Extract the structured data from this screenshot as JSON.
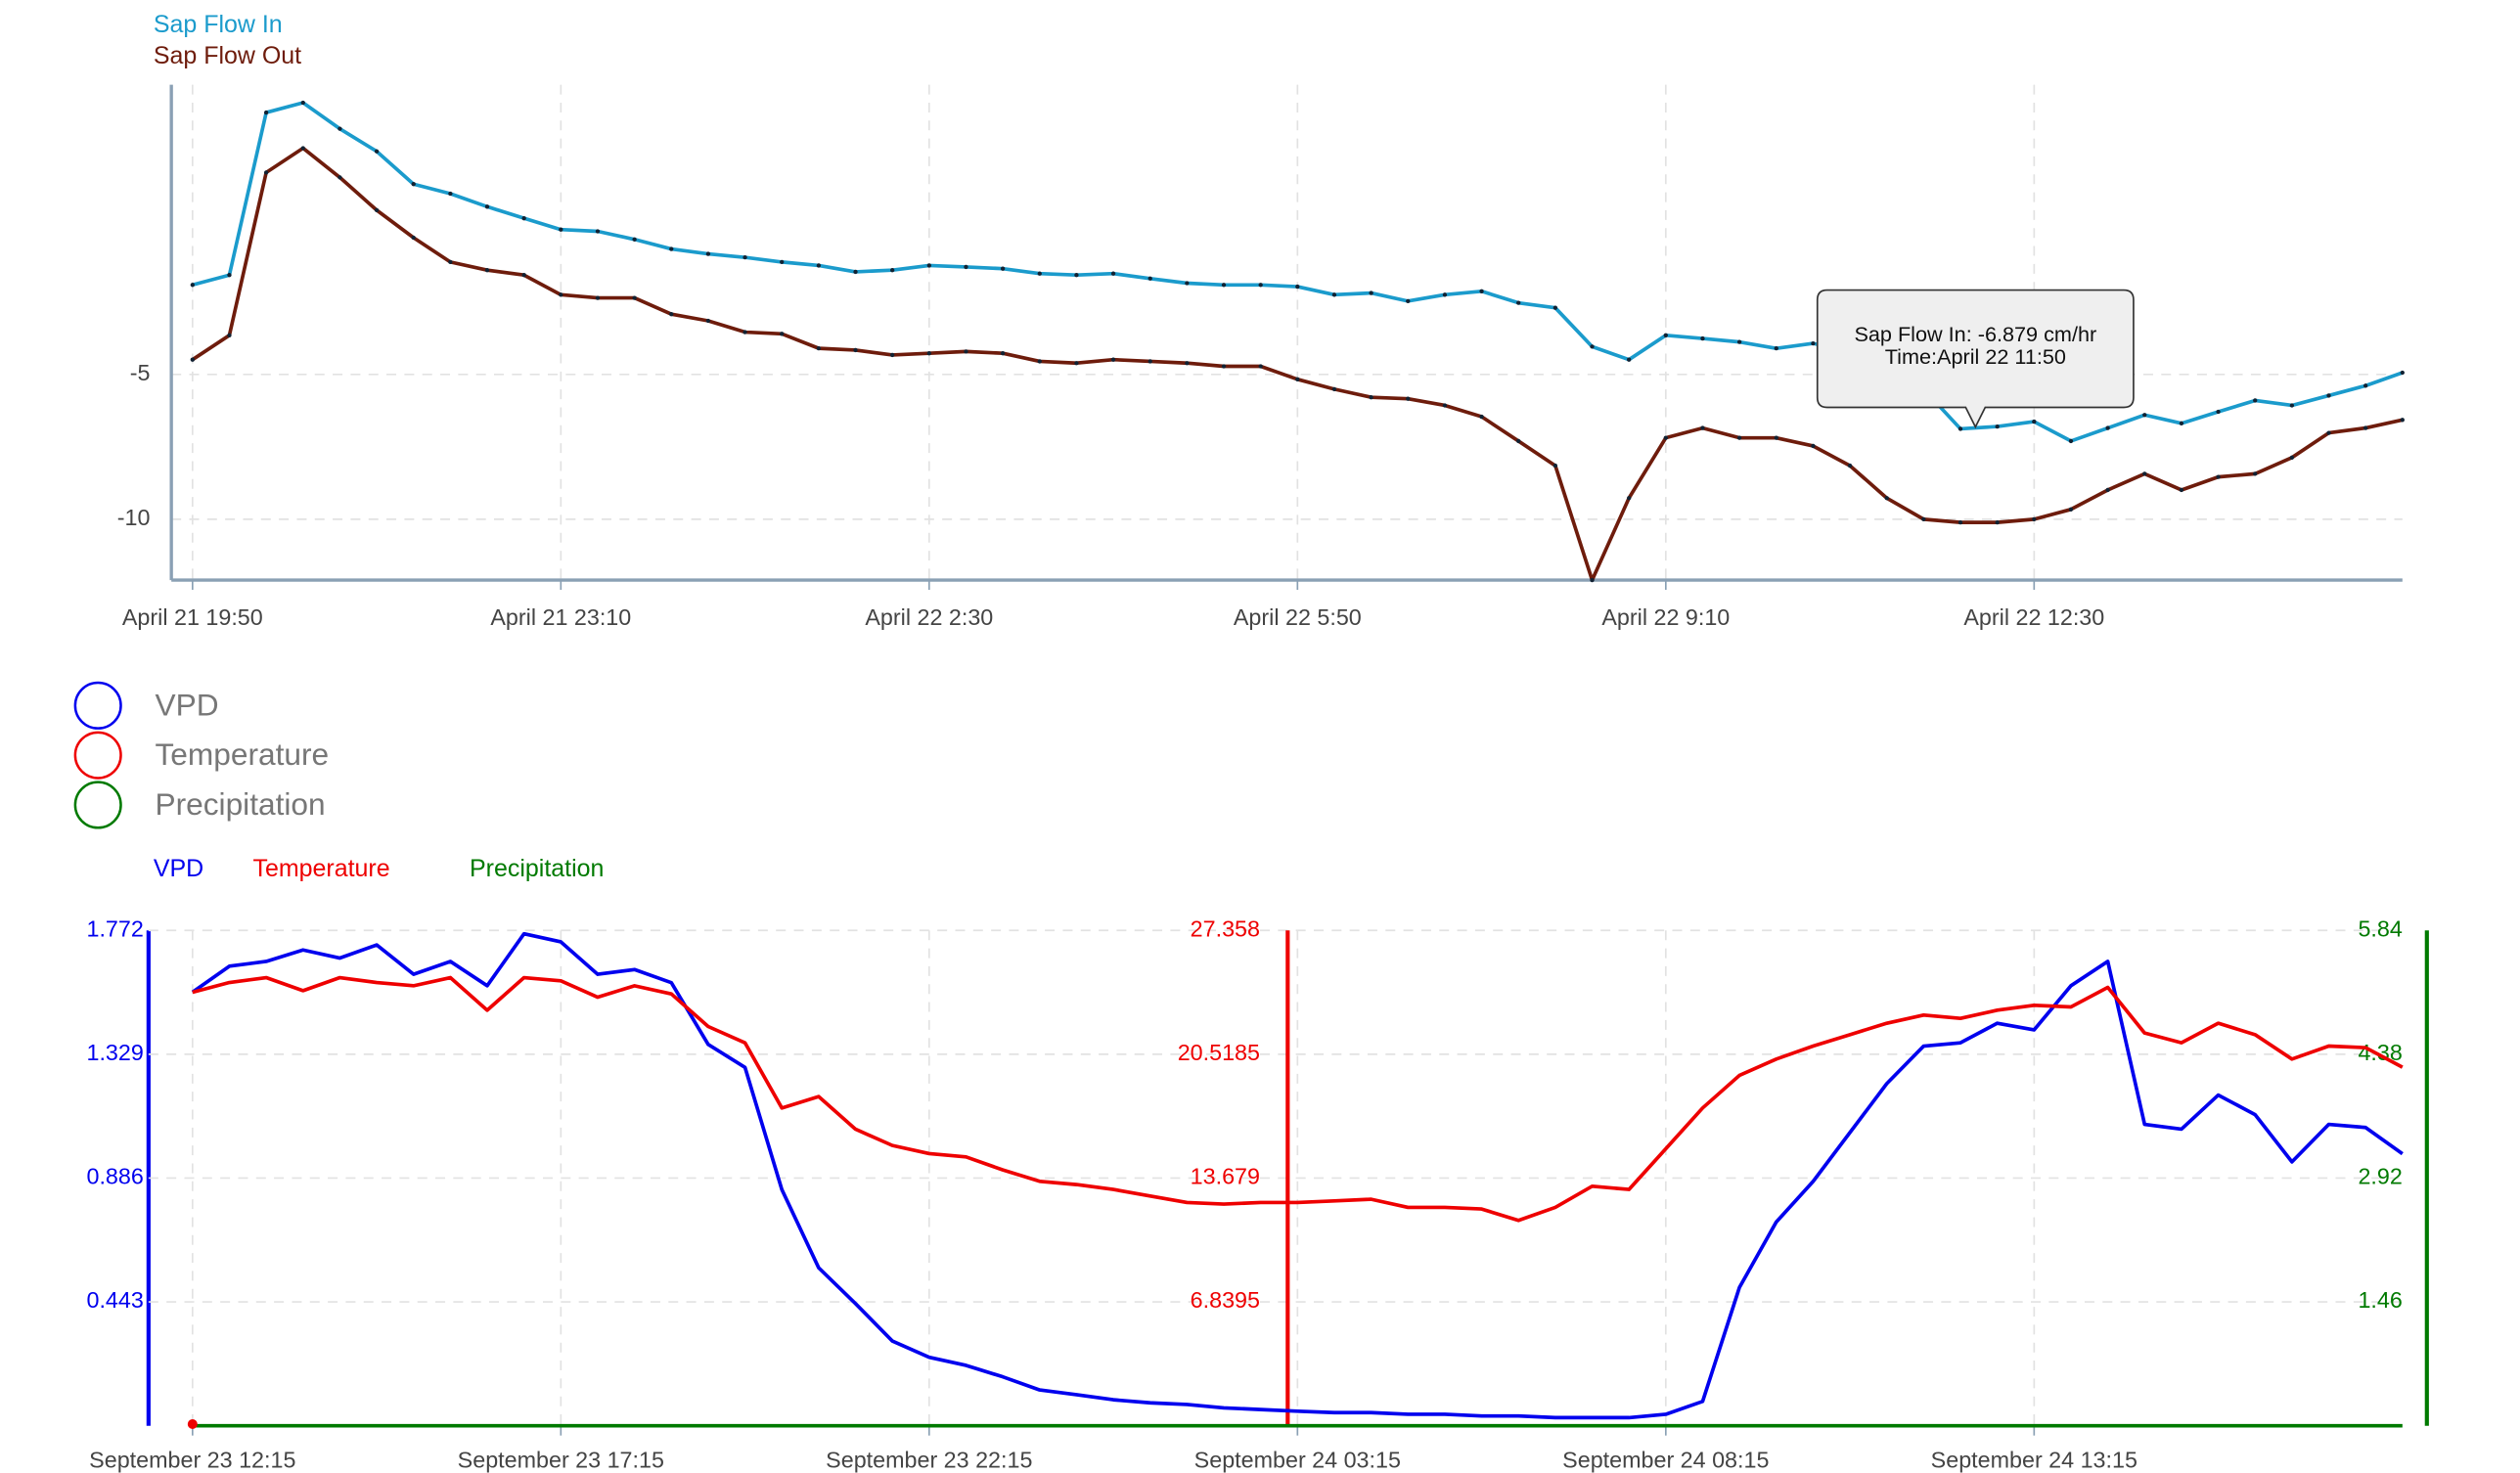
{
  "chart_data": [
    {
      "type": "line",
      "categories": [
        "April 21 19:50",
        null,
        null,
        null,
        null,
        null,
        null,
        null,
        null,
        null,
        "April 21 23:10",
        null,
        null,
        null,
        null,
        null,
        null,
        null,
        null,
        null,
        "April 22 2:30",
        null,
        null,
        null,
        null,
        null,
        null,
        null,
        null,
        null,
        "April 22 5:50",
        null,
        null,
        null,
        null,
        null,
        null,
        null,
        null,
        null,
        "April 22 9:10",
        null,
        null,
        null,
        null,
        null,
        null,
        null,
        null,
        null,
        "April 22 12:30",
        null,
        null,
        null,
        null,
        null,
        null,
        null,
        null,
        null,
        null
      ],
      "series": [
        {
          "name": "Sap Flow In",
          "color": "#1b9bcc",
          "values": [
            -1.91,
            -1.57,
            4.04,
            4.38,
            3.48,
            2.7,
            1.57,
            1.24,
            0.79,
            0.39,
            0.0,
            -0.06,
            -0.34,
            -0.67,
            -0.84,
            -0.96,
            -1.12,
            -1.24,
            -1.46,
            -1.4,
            -1.24,
            -1.29,
            -1.35,
            -1.52,
            -1.57,
            -1.52,
            -1.69,
            -1.85,
            -1.91,
            -1.91,
            -1.97,
            -2.25,
            -2.19,
            -2.47,
            -2.25,
            -2.13,
            -2.53,
            -2.7,
            -4.04,
            -4.49,
            -3.65,
            -3.76,
            -3.88,
            -4.1,
            -3.93,
            -4.21,
            -4.94,
            -5.51,
            -6.879,
            -6.8,
            -6.63,
            -7.3,
            -6.85,
            -6.4,
            -6.69,
            -6.29,
            -5.9,
            -6.07,
            -5.73,
            -5.39,
            -4.94
          ]
        },
        {
          "name": "Sap Flow Out",
          "color": "#6e1c0c",
          "values": [
            -4.49,
            -3.65,
            1.97,
            2.81,
            1.8,
            0.67,
            -0.28,
            -1.12,
            -1.4,
            -1.57,
            -2.25,
            -2.36,
            -2.36,
            -2.92,
            -3.15,
            -3.54,
            -3.6,
            -4.1,
            -4.16,
            -4.33,
            -4.27,
            -4.21,
            -4.27,
            -4.55,
            -4.61,
            -4.49,
            -4.55,
            -4.61,
            -4.72,
            -4.72,
            -5.17,
            -5.51,
            -5.79,
            -5.84,
            -6.07,
            -6.46,
            -7.3,
            -8.15,
            -12.1,
            -9.27,
            -7.19,
            -6.85,
            -7.19,
            -7.19,
            -7.47,
            -8.15,
            -9.27,
            -10.0,
            -10.11,
            -10.11,
            -10.0,
            -9.66,
            -8.99,
            -8.43,
            -8.99,
            -8.54,
            -8.43,
            -7.87,
            -7.02,
            -6.85,
            -6.57
          ]
        }
      ],
      "ylim": [
        -12.1,
        5
      ],
      "yticks": [
        -5,
        -10
      ],
      "grid": true,
      "tooltip": [
        "Sap Flow In: -6.879 cm/hr",
        "Time:April 22 11:50"
      ]
    },
    {
      "type": "line",
      "categories": [
        "September 23 12:15",
        null,
        null,
        null,
        null,
        null,
        null,
        null,
        null,
        null,
        "September 23 17:15",
        null,
        null,
        null,
        null,
        null,
        null,
        null,
        null,
        null,
        "September 23 22:15",
        null,
        null,
        null,
        null,
        null,
        null,
        null,
        null,
        null,
        "September 24 03:15",
        null,
        null,
        null,
        null,
        null,
        null,
        null,
        null,
        null,
        "September 24 08:15",
        null,
        null,
        null,
        null,
        null,
        null,
        null,
        null,
        null,
        "September 24 13:15",
        null,
        null,
        null,
        null,
        null,
        null,
        null,
        null,
        null,
        null
      ],
      "series": [
        {
          "name": "VPD",
          "color": "#0000ee",
          "axis": "y",
          "values": [
            1.551,
            1.644,
            1.661,
            1.702,
            1.673,
            1.72,
            1.615,
            1.661,
            1.574,
            1.76,
            1.731,
            1.615,
            1.632,
            1.585,
            1.364,
            1.282,
            0.845,
            0.565,
            0.437,
            0.303,
            0.245,
            0.216,
            0.175,
            0.128,
            0.111,
            0.093,
            0.082,
            0.076,
            0.064,
            0.058,
            0.052,
            0.047,
            0.047,
            0.041,
            0.041,
            0.035,
            0.035,
            0.029,
            0.029,
            0.029,
            0.041,
            0.087,
            0.495,
            0.729,
            0.874,
            1.049,
            1.224,
            1.358,
            1.37,
            1.44,
            1.416,
            1.574,
            1.661,
            1.078,
            1.061,
            1.183,
            1.113,
            0.944,
            1.078,
            1.067,
            0.973
          ]
        },
        {
          "name": "Temperature",
          "color": "#ee0000",
          "axis": "y2",
          "values": [
            23.94,
            24.48,
            24.75,
            24.03,
            24.75,
            24.48,
            24.3,
            24.75,
            22.95,
            24.75,
            24.57,
            23.67,
            24.3,
            23.85,
            22.05,
            21.15,
            17.55,
            18.18,
            16.38,
            15.48,
            15.03,
            14.85,
            14.13,
            13.5,
            13.32,
            13.05,
            12.69,
            12.33,
            12.24,
            12.33,
            12.33,
            12.42,
            12.51,
            12.06,
            12.06,
            11.97,
            11.34,
            12.06,
            13.23,
            13.05,
            15.3,
            17.55,
            19.35,
            20.25,
            20.97,
            21.6,
            22.23,
            22.68,
            22.5,
            22.95,
            23.22,
            23.13,
            24.21,
            21.69,
            21.15,
            22.23,
            21.6,
            20.25,
            20.97,
            20.88,
            19.8
          ]
        },
        {
          "name": "Precipitation",
          "color": "#007a00",
          "axis": "y3",
          "values": [
            0,
            0,
            0,
            0,
            0,
            0,
            0,
            0,
            0,
            0,
            0,
            0,
            0,
            0,
            0,
            0,
            0,
            0,
            0,
            0,
            0,
            0,
            0,
            0,
            0,
            0,
            0,
            0,
            0,
            0,
            0,
            0,
            0,
            0,
            0,
            0,
            0,
            0,
            0,
            0,
            0,
            0,
            0,
            0,
            0,
            0,
            0,
            0,
            0,
            0,
            0,
            0,
            0,
            0,
            0,
            0,
            0,
            0,
            0,
            0,
            0
          ]
        }
      ],
      "ylim": [
        0,
        1.772
      ],
      "yticks": [
        0.443,
        0.886,
        1.329,
        1.772
      ],
      "y2lim": [
        0,
        27.358
      ],
      "y2ticks": [
        6.8395,
        13.679,
        20.5185,
        27.358
      ],
      "y3lim": [
        0,
        5.84
      ],
      "y3ticks": [
        1.46,
        2.92,
        4.38,
        5.84
      ],
      "grid": true,
      "legend": "top-left"
    }
  ]
}
